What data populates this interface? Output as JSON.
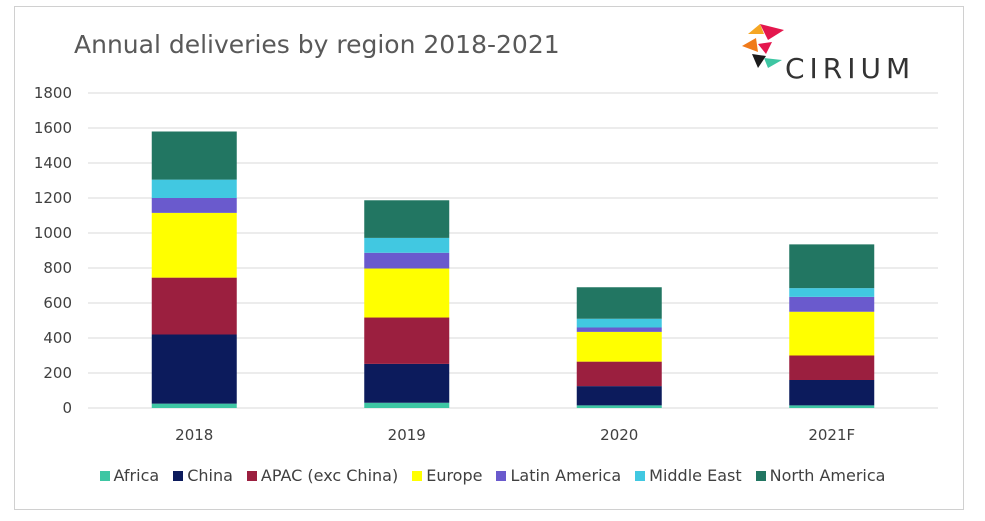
{
  "chart_data": {
    "type": "bar",
    "stacked": true,
    "title": "Annual deliveries by region 2018-2021",
    "categories": [
      "2018",
      "2019",
      "2020",
      "2021F"
    ],
    "ylim": [
      0,
      1800
    ],
    "yticks": [
      "0",
      "200",
      "400",
      "600",
      "800",
      "1000",
      "1200",
      "1400",
      "1600",
      "1800"
    ],
    "grid": true,
    "legend_position": "bottom",
    "series": [
      {
        "name": "Africa",
        "color": "#3ec6a3",
        "values": [
          25,
          30,
          15,
          15
        ]
      },
      {
        "name": "China",
        "color": "#0c1b5c",
        "values": [
          395,
          222,
          110,
          145
        ]
      },
      {
        "name": "APAC (exc China)",
        "color": "#9b1f3f",
        "values": [
          325,
          265,
          140,
          140
        ]
      },
      {
        "name": "Europe",
        "color": "#ffff00",
        "values": [
          370,
          280,
          170,
          250
        ]
      },
      {
        "name": "Latin America",
        "color": "#6a5acd",
        "values": [
          85,
          90,
          25,
          85
        ]
      },
      {
        "name": "Middle East",
        "color": "#41c8e1",
        "values": [
          105,
          85,
          50,
          50
        ]
      },
      {
        "name": "North America",
        "color": "#227662",
        "values": [
          275,
          215,
          180,
          250
        ]
      }
    ]
  },
  "logo": {
    "text": "CIRIUM"
  }
}
